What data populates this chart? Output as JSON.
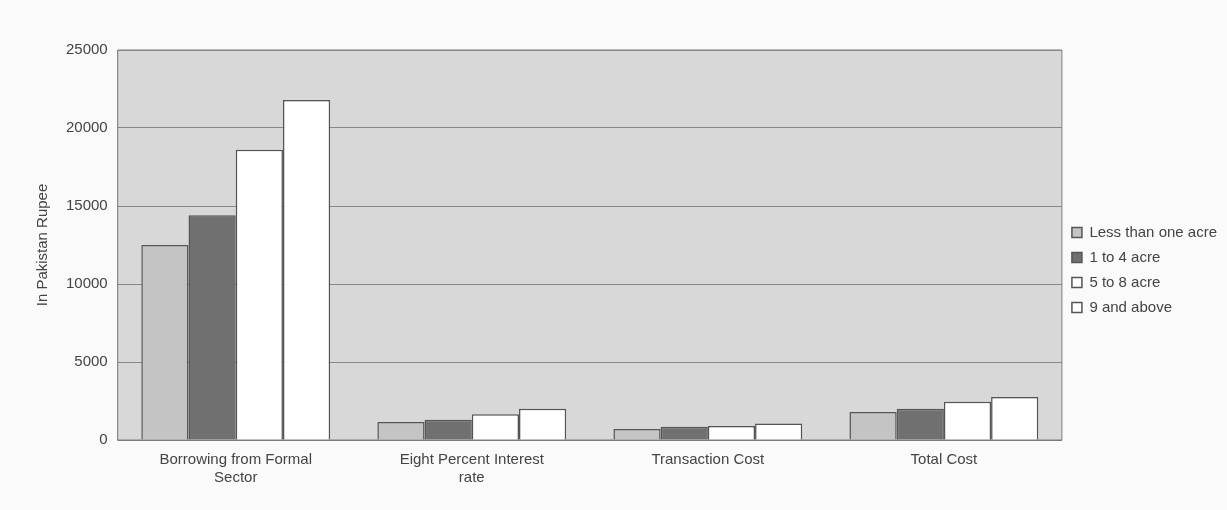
{
  "chart_data": {
    "type": "bar",
    "ylabel": "In Pakistan Rupee",
    "categories": [
      "Borrowing from Formal Sector",
      "Eight Percent Interest rate",
      "Transaction Cost",
      "Total Cost"
    ],
    "series": [
      {
        "name": "Less than one acre",
        "color": "#c4c4c4",
        "values": [
          12500,
          1150,
          700,
          1800
        ]
      },
      {
        "name": "1 to 4 acre",
        "color": "#707070",
        "values": [
          14400,
          1300,
          850,
          2000
        ]
      },
      {
        "name": "5 to 8 acre",
        "color": "#ffffff",
        "values": [
          18600,
          1650,
          900,
          2450
        ]
      },
      {
        "name": "9 and above",
        "color": "#ffffff",
        "values": [
          21800,
          2000,
          1050,
          2750
        ]
      }
    ],
    "ylim": [
      0,
      25000
    ],
    "yticks": [
      0,
      5000,
      10000,
      15000,
      20000,
      25000
    ],
    "grid": "y",
    "legend": "right"
  }
}
